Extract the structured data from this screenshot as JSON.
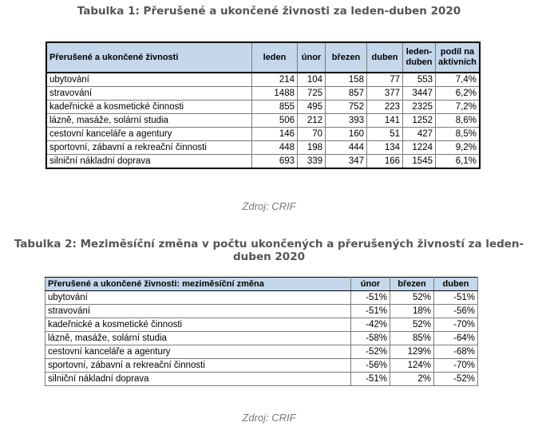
{
  "table1": {
    "caption": "Tabulka 1: Přerušené a ukončené živnosti za leden-duben 2020",
    "headers": [
      "Přerušené a ukončené živnosti",
      "leden",
      "únor",
      "březen",
      "duben",
      "leden-\nduben",
      "podíl na\naktivních"
    ],
    "rows": [
      [
        "ubytování",
        "214",
        "104",
        "158",
        "77",
        "553",
        "7,4%"
      ],
      [
        "stravování",
        "1488",
        "725",
        "857",
        "377",
        "3447",
        "6,2%"
      ],
      [
        "kadeřnické a kosmetické činnosti",
        "855",
        "495",
        "752",
        "223",
        "2325",
        "7,2%"
      ],
      [
        "lázně, masáže, solární studia",
        "506",
        "212",
        "393",
        "141",
        "1252",
        "8,6%"
      ],
      [
        "cestovní kanceláře a agentury",
        "146",
        "70",
        "160",
        "51",
        "427",
        "8,5%"
      ],
      [
        "sportovní, zábavní a rekreační činnosti",
        "448",
        "198",
        "444",
        "134",
        "1224",
        "9,2%"
      ],
      [
        "silniční nákladní doprava",
        "693",
        "339",
        "347",
        "166",
        "1545",
        "6,1%"
      ]
    ],
    "source": "Zdroj: CRIF"
  },
  "table2": {
    "caption": "Tabulka 2: Meziměsíční změna v počtu ukončených a přerušených živností za leden-duben 2020",
    "headers": [
      "Přerušené a ukončené živnosti: meziměsíční změna",
      "únor",
      "březen",
      "duben"
    ],
    "rows": [
      [
        "ubytování",
        "-51%",
        "52%",
        "-51%"
      ],
      [
        "stravování",
        "-51%",
        "18%",
        "-56%"
      ],
      [
        "kadeřnické a kosmetické činnosti",
        "-42%",
        "52%",
        "-70%"
      ],
      [
        "lázně, masáže, solární studia",
        "-58%",
        "85%",
        "-64%"
      ],
      [
        "cestovní kanceláře a agentury",
        "-52%",
        "129%",
        "-68%"
      ],
      [
        "sportovní, zábavní a rekreační činnosti",
        "-56%",
        "124%",
        "-70%"
      ],
      [
        "silniční nákladní doprava",
        "-51%",
        "2%",
        "-52%"
      ]
    ],
    "source": "Zdroj: CRIF"
  }
}
